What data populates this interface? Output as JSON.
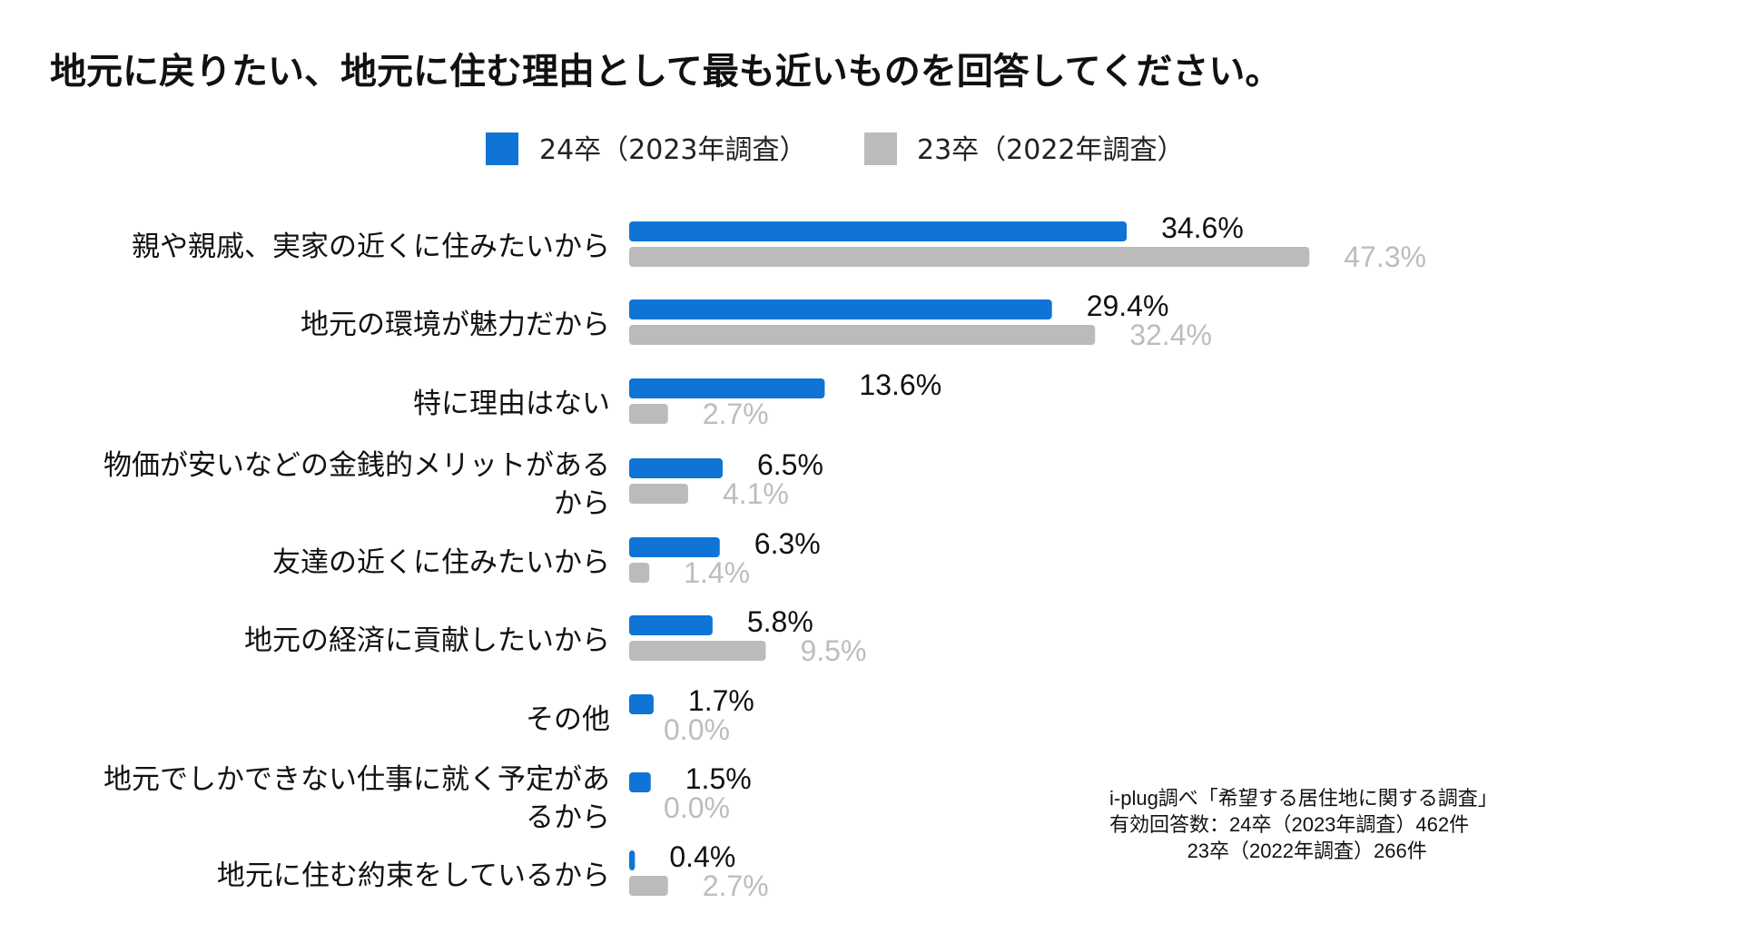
{
  "chart_data": {
    "type": "bar",
    "orientation": "horizontal",
    "title": "地元に戻りたい、地元に住む理由として最も近いものを回答してください。",
    "legend_position": "top-center",
    "grid": false,
    "xlim": [
      0,
      50
    ],
    "categories": [
      [
        "親や親戚、実家の近くに住みたいから"
      ],
      [
        "地元の環境が魅力だから"
      ],
      [
        "特に理由はない"
      ],
      [
        "物価が安いなどの金銭的メリットがある",
        "から"
      ],
      [
        "友達の近くに住みたいから"
      ],
      [
        "地元の経済に貢献したいから"
      ],
      [
        "その他"
      ],
      [
        "地元でしかできない仕事に就く予定があ",
        "るから"
      ],
      [
        "地元に住む約束をしているから"
      ]
    ],
    "series": [
      {
        "name": "24卒（2023年調査）",
        "color": "#0f74d6",
        "values": [
          34.6,
          29.4,
          13.6,
          6.5,
          6.3,
          5.8,
          1.7,
          1.5,
          0.4
        ],
        "labels": [
          "34.6%",
          "29.4%",
          "13.6%",
          "6.5%",
          "6.3%",
          "5.8%",
          "1.7%",
          "1.5%",
          "0.4%"
        ]
      },
      {
        "name": "23卒（2022年調査）",
        "color": "#bbbbbb",
        "values": [
          47.3,
          32.4,
          2.7,
          4.1,
          1.4,
          9.5,
          0.0,
          0.0,
          2.7
        ],
        "labels": [
          "47.3%",
          "32.4%",
          "2.7%",
          "4.1%",
          "1.4%",
          "9.5%",
          "0.0%",
          "0.0%",
          "2.7%"
        ]
      }
    ]
  },
  "source_note": {
    "line1": "i-plug調べ「希望する居住地に関する調査」",
    "line2": "有効回答数：24卒（2023年調査）462件",
    "line3": "              23卒（2022年調査）266件"
  }
}
